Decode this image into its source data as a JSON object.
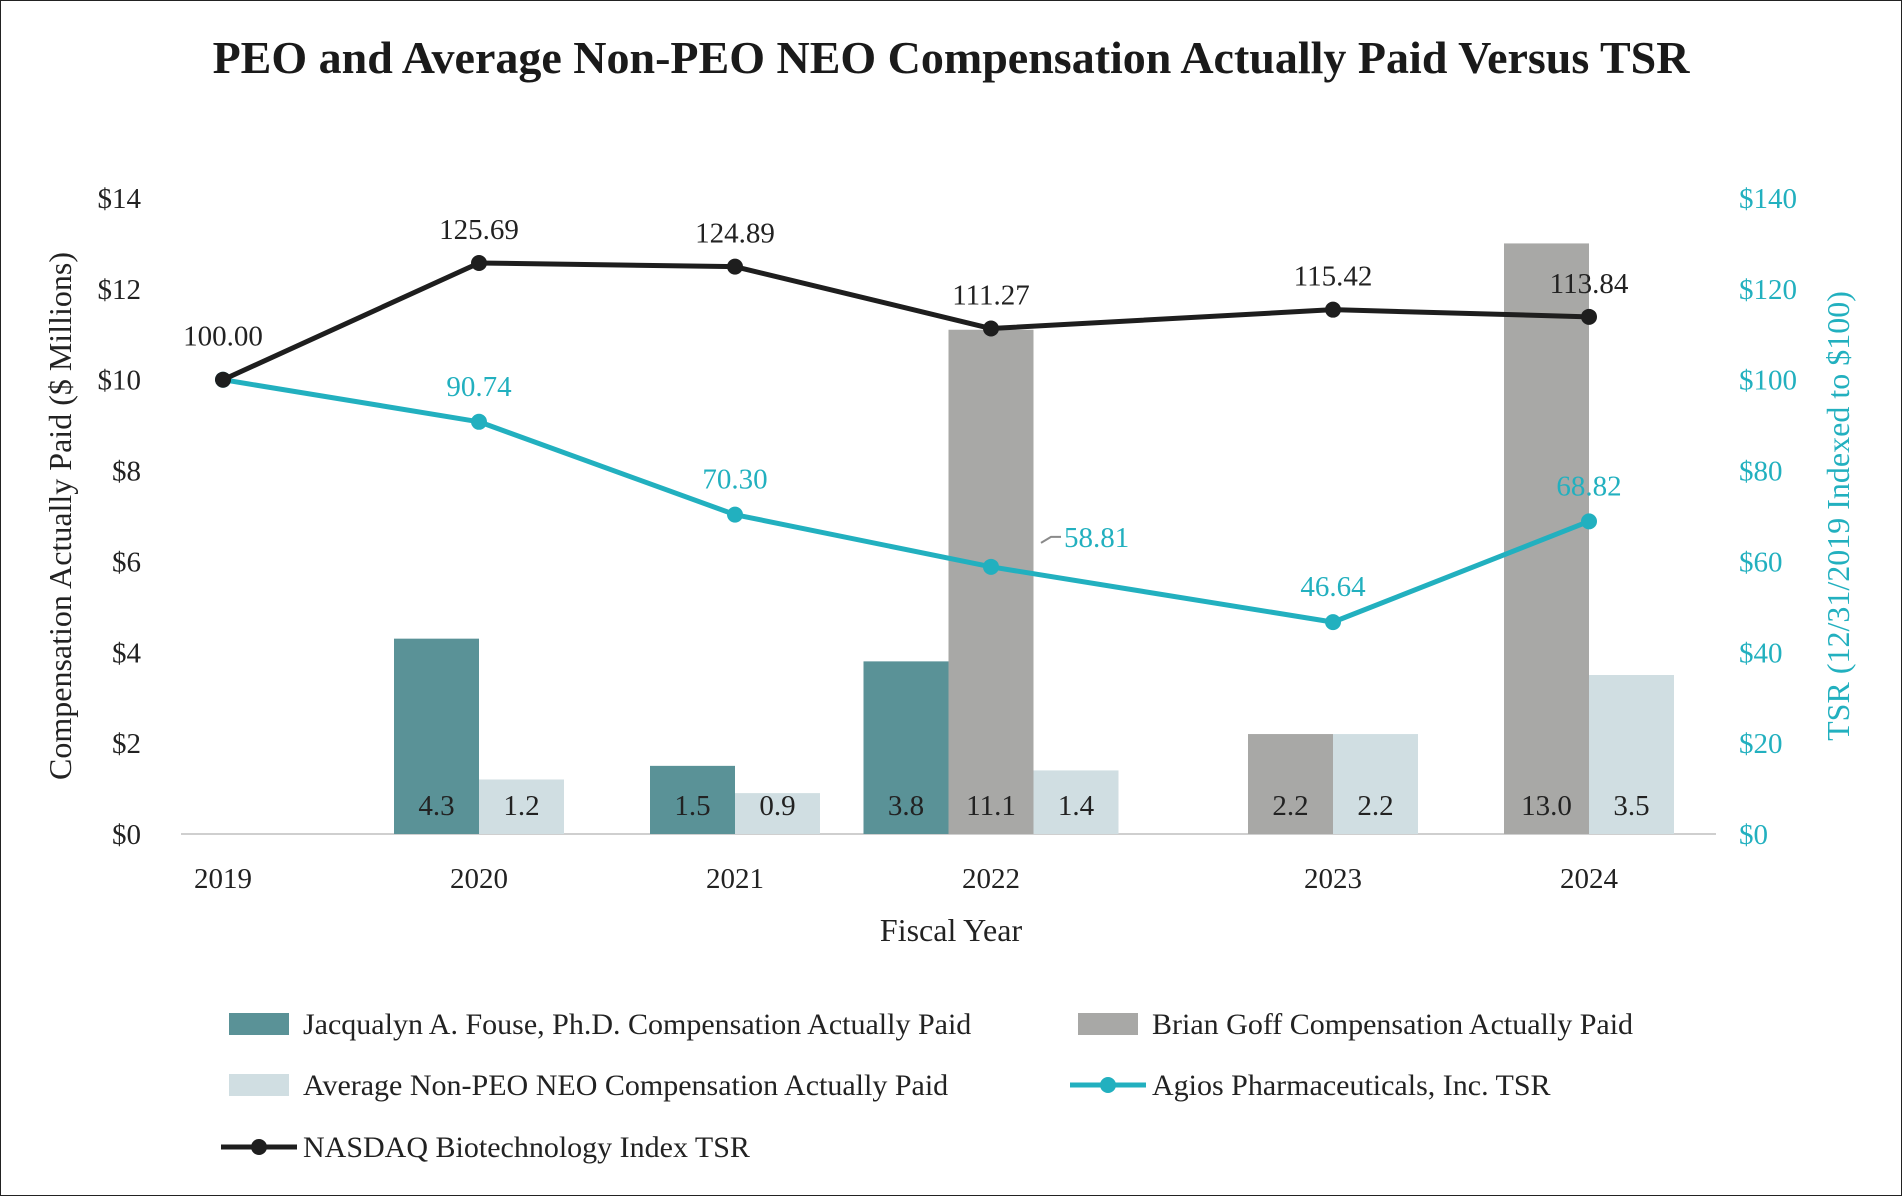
{
  "chart_data": {
    "type": "bar",
    "title": "PEO and Average Non-PEO NEO Compensation Actually Paid Versus TSR",
    "xlabel": "Fiscal Year",
    "ylabel": "Compensation Actually Paid ($ Millions)",
    "y2label": "TSR (12/31/2019 Indexed to $100)",
    "categories": [
      "2019",
      "2020",
      "2021",
      "2022",
      "2023",
      "2024"
    ],
    "ylim": [
      0,
      14
    ],
    "y2lim": [
      0,
      140
    ],
    "yticks": [
      "$0",
      "$2",
      "$4",
      "$6",
      "$8",
      "$10",
      "$12",
      "$14"
    ],
    "y2ticks": [
      "$0",
      "$20",
      "$40",
      "$60",
      "$80",
      "$100",
      "$120",
      "$140"
    ],
    "grid": false,
    "legend_position": "bottom",
    "series": [
      {
        "name": "Jacqualyn A. Fouse, Ph.D. Compensation Actually Paid",
        "kind": "bar",
        "axis": "left",
        "color": "#5a9297",
        "values": [
          null,
          4.3,
          1.5,
          3.8,
          null,
          null
        ],
        "labels": [
          "",
          "4.3",
          "1.5",
          "3.8",
          "",
          ""
        ]
      },
      {
        "name": "Brian Goff Compensation Actually Paid",
        "kind": "bar",
        "axis": "left",
        "color": "#a8a8a6",
        "values": [
          null,
          null,
          null,
          11.1,
          2.2,
          13.0
        ],
        "labels": [
          "",
          "",
          "",
          "11.1",
          "2.2",
          "13.0"
        ]
      },
      {
        "name": "Average Non-PEO NEO Compensation Actually Paid",
        "kind": "bar",
        "axis": "left",
        "color": "#d0dee2",
        "values": [
          null,
          1.2,
          0.9,
          1.4,
          2.2,
          3.5
        ],
        "labels": [
          "",
          "1.2",
          "0.9",
          "1.4",
          "2.2",
          "3.5"
        ]
      },
      {
        "name": "Agios Pharmaceuticals, Inc. TSR",
        "kind": "line",
        "axis": "right",
        "color": "#22b0bf",
        "values": [
          100.0,
          90.74,
          70.3,
          58.81,
          46.64,
          68.82
        ],
        "labels": [
          "",
          "90.74",
          "70.30",
          "58.81",
          "46.64",
          "68.82"
        ]
      },
      {
        "name": "NASDAQ Biotechnology Index TSR",
        "kind": "line",
        "axis": "right",
        "color": "#1e1e1e",
        "values": [
          100.0,
          125.69,
          124.89,
          111.27,
          115.42,
          113.84
        ],
        "labels": [
          "100.00",
          "125.69",
          "124.89",
          "111.27",
          "115.42",
          "113.84"
        ]
      }
    ]
  }
}
